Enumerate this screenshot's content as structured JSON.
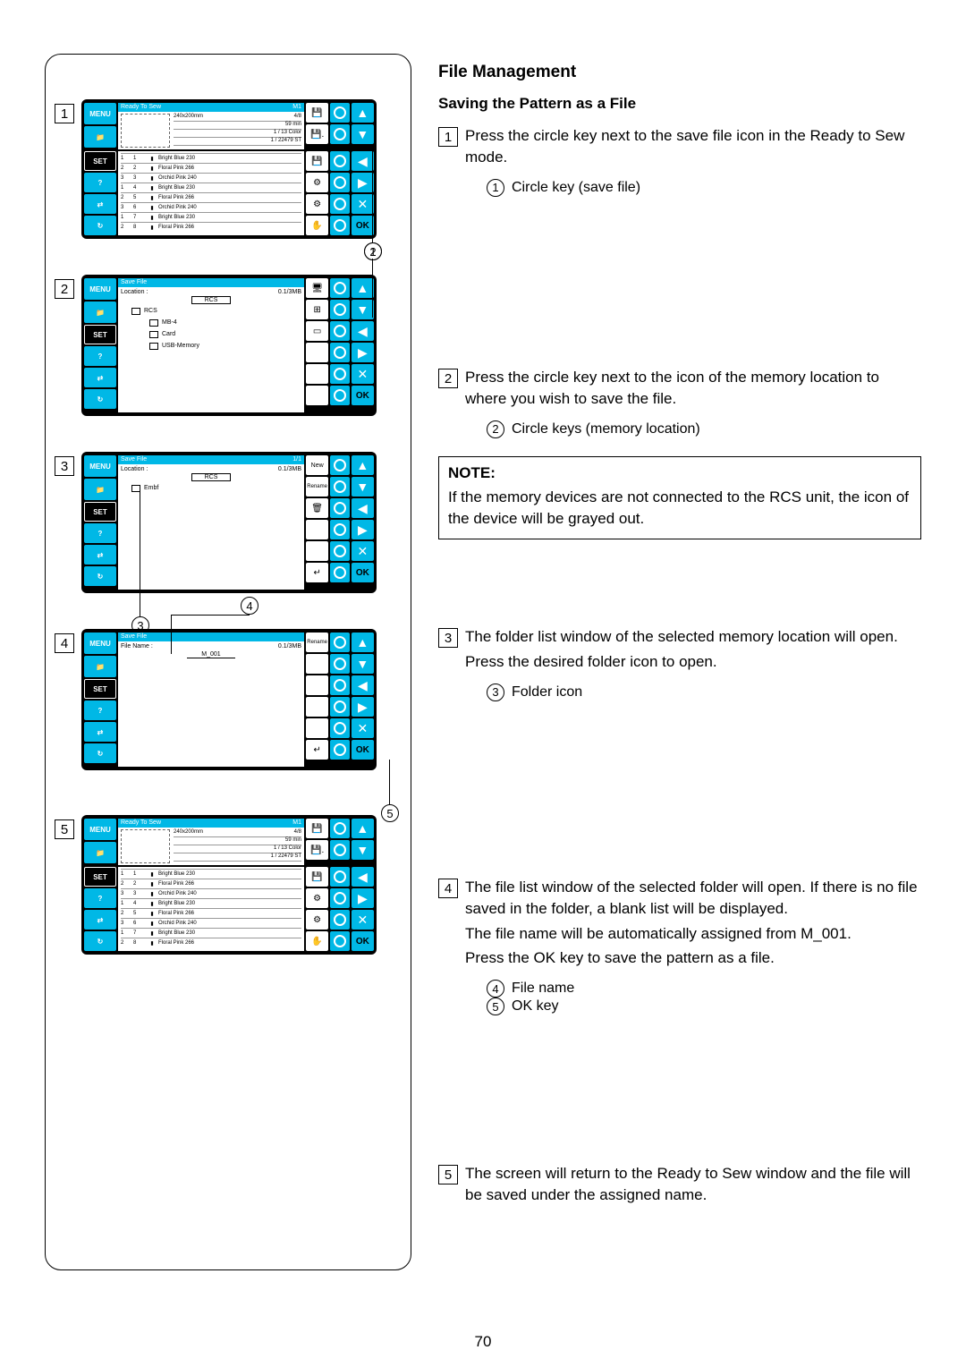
{
  "page_number": "70",
  "heading": "File Management",
  "subheading": "Saving the Pattern as a File",
  "steps": {
    "s1": {
      "num": "1",
      "text": "Press the circle key next to the save file icon in the Ready to Sew mode.",
      "sub_num": "1",
      "sub_text": "Circle key (save file)"
    },
    "s2": {
      "num": "2",
      "text": "Press the circle key next to the icon of the memory location to where you wish to save the file.",
      "sub_num": "2",
      "sub_text": "Circle keys (memory location)"
    },
    "s3": {
      "num": "3",
      "text_a": "The folder list window of the selected memory location will open.",
      "text_b": "Press the desired folder icon to open.",
      "sub_num": "3",
      "sub_text": "Folder icon"
    },
    "s4": {
      "num": "4",
      "text_a": "The file list window of the selected folder will open. If there is no file saved in the folder, a blank list will be displayed.",
      "text_b": "The file name will be automatically assigned from M_001.",
      "text_c": "Press the OK key to save the pattern as a file.",
      "sub4_num": "4",
      "sub4_text": "File name",
      "sub5_num": "5",
      "sub5_text": "OK key"
    },
    "s5": {
      "num": "5",
      "text": "The screen will return to the Ready to Sew window and the file will be saved under the assigned name."
    }
  },
  "note": {
    "label": "NOTE:",
    "text": "If the memory devices are not connected to the RCS unit, the icon of the device will be grayed out."
  },
  "device": {
    "menu": "MENU",
    "set": "SET",
    "help": "?",
    "ok": "OK",
    "ready": "Ready To Sew",
    "m1": "M1",
    "pager": "4/8",
    "size": "240x200mm",
    "time": "59 min",
    "colors": "1 / 13 Color",
    "stitches": "1 / 22479 ST",
    "savefile": "Save File",
    "location": "Location :",
    "memory": "0.1/3MB",
    "rcs_label": "RCS",
    "rcs_btn": "RCS",
    "mb4": "MB-4",
    "card": "Card",
    "usb": "USB-Memory",
    "embf": "Embf",
    "new": "New",
    "rename": "Rename",
    "filename_label": "File Name :",
    "filename_value": "M_001",
    "page11": "1/1",
    "threads": [
      {
        "a": "1",
        "b": "1",
        "c": "▮",
        "d": "Bright Blue 230"
      },
      {
        "a": "2",
        "b": "2",
        "c": "▮",
        "d": "Floral Pink 266"
      },
      {
        "a": "3",
        "b": "3",
        "c": "▮",
        "d": "Orchid Pink 240"
      },
      {
        "a": "1",
        "b": "4",
        "c": "▮",
        "d": "Bright Blue 230"
      },
      {
        "a": "2",
        "b": "5",
        "c": "▮",
        "d": "Floral Pink 266"
      },
      {
        "a": "3",
        "b": "6",
        "c": "▮",
        "d": "Orchid Pink 240"
      },
      {
        "a": "1",
        "b": "7",
        "c": "▮",
        "d": "Bright Blue 230"
      },
      {
        "a": "2",
        "b": "8",
        "c": "▮",
        "d": "Floral Pink 266"
      }
    ]
  },
  "icons": {
    "up": "▲",
    "down": "▼",
    "left": "◀",
    "right": "▶",
    "x": "✕",
    "enter": "↵",
    "save": "💾",
    "folder": "📁",
    "delete": "🗑",
    "hand": "✋"
  },
  "colors": {
    "accent": "#00b8e6"
  }
}
